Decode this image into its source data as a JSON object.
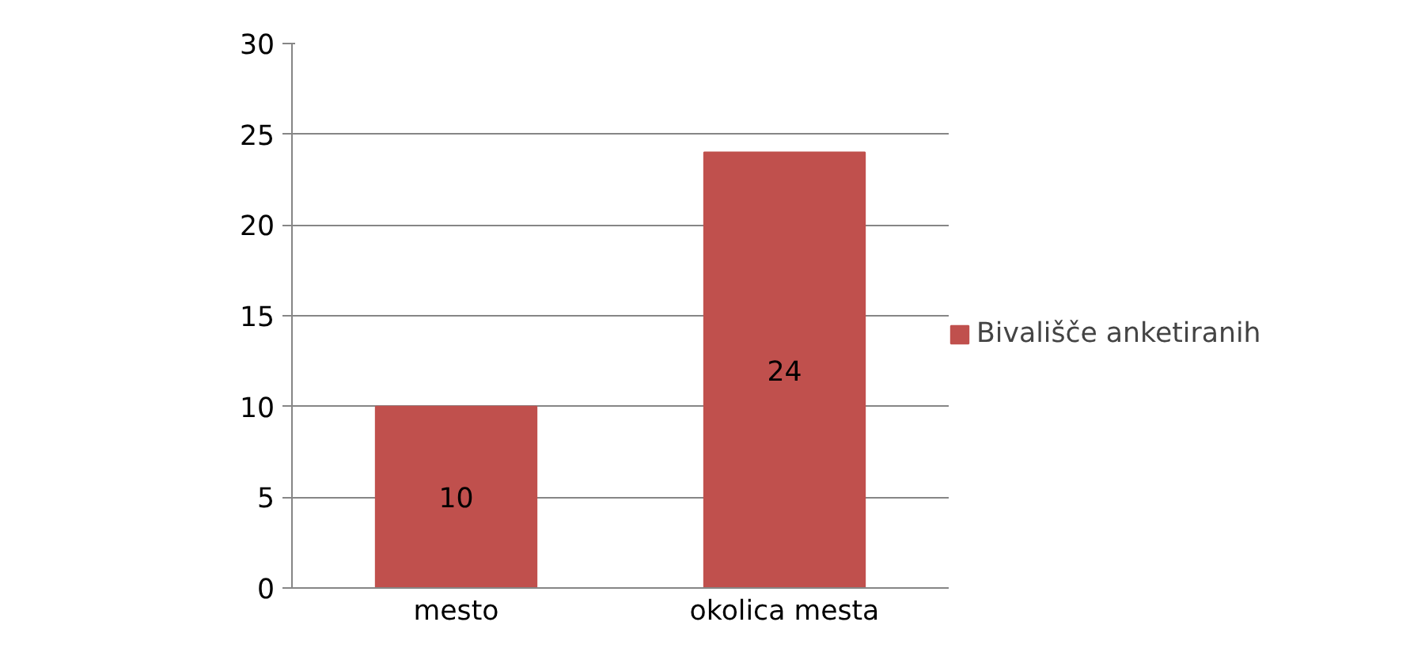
{
  "chart_data": {
    "type": "bar",
    "categories": [
      "mesto",
      "okolica mesta"
    ],
    "series": [
      {
        "name": "Bivališče anketiranih",
        "color": "#c0504d",
        "values": [
          10,
          24
        ]
      }
    ],
    "ylim": [
      0,
      30
    ],
    "yticks": [
      0,
      5,
      10,
      15,
      20,
      25,
      30
    ],
    "grid": "y",
    "legend": "right",
    "data_labels": true
  }
}
